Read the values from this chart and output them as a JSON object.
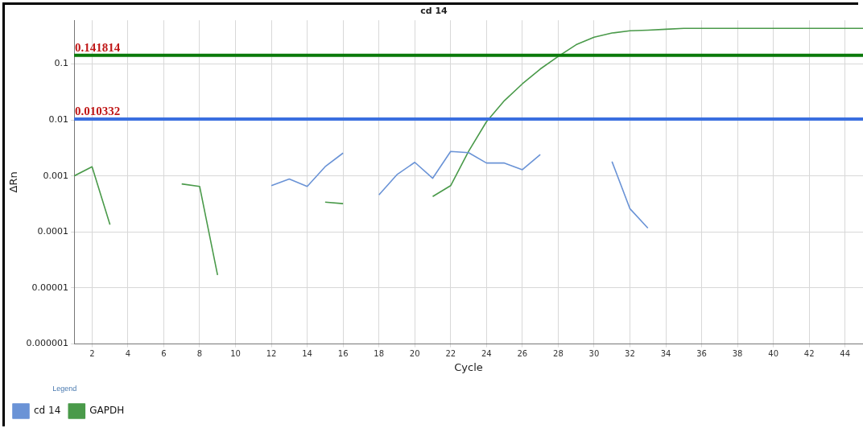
{
  "chart_data": {
    "type": "line",
    "title": "cd 14",
    "xlabel": "Cycle",
    "ylabel": "ΔRn",
    "legend_title": "Legend",
    "x": [
      1,
      2,
      3,
      4,
      5,
      6,
      7,
      8,
      9,
      10,
      11,
      12,
      13,
      14,
      15,
      16,
      17,
      18,
      19,
      20,
      21,
      22,
      23,
      24,
      25,
      26,
      27,
      28,
      29,
      30,
      31,
      32,
      33,
      34,
      35,
      36,
      37,
      38,
      39,
      40,
      41,
      42,
      43,
      44,
      45
    ],
    "series": [
      {
        "name": "cd 14",
        "color": "#6a93d6",
        "values": [
          null,
          null,
          null,
          null,
          null,
          null,
          null,
          null,
          null,
          null,
          null,
          0.00067,
          0.00088,
          0.00065,
          0.00146,
          0.00256,
          null,
          0.00046,
          0.00105,
          0.00175,
          0.00091,
          0.00274,
          0.0026,
          0.0017,
          0.0017,
          0.00129,
          0.0024,
          null,
          null,
          null,
          0.0018,
          0.00026,
          0.000117,
          null,
          null,
          null,
          null,
          null,
          null,
          null,
          null,
          null,
          null,
          null,
          null
        ]
      },
      {
        "name": "GAPDH",
        "color": "#4a9a4a",
        "values": [
          0.001,
          0.00146,
          0.000135,
          null,
          null,
          null,
          0.00072,
          0.00065,
          1.7e-05,
          null,
          null,
          null,
          null,
          null,
          0.00034,
          0.00032,
          null,
          null,
          null,
          null,
          0.00043,
          0.00067,
          0.00274,
          0.0093,
          0.0221,
          0.044,
          0.081,
          0.136,
          0.22,
          0.3,
          0.355,
          0.39,
          0.4,
          0.415,
          0.43,
          0.43,
          0.43,
          0.43,
          0.43,
          0.43,
          0.43,
          0.43,
          0.43,
          0.43,
          0.43
        ]
      }
    ],
    "ref_lines": [
      {
        "axis": "y",
        "value": 0.141814,
        "label": "0.141814",
        "color": "#0a7a0a"
      },
      {
        "axis": "y",
        "value": 0.010332,
        "label": "0.010332",
        "color": "#3a6fe0"
      }
    ],
    "log": "y",
    "xlim": [
      1,
      45
    ],
    "xticks": [
      2,
      4,
      6,
      8,
      10,
      12,
      14,
      16,
      18,
      20,
      22,
      24,
      26,
      28,
      30,
      32,
      34,
      36,
      38,
      40,
      42,
      44
    ],
    "ylim": [
      1e-06,
      0.6
    ],
    "yticks": [
      {
        "value": 1e-06,
        "label": "0.000001"
      },
      {
        "value": 1e-05,
        "label": "0.00001"
      },
      {
        "value": 0.0001,
        "label": "0.0001"
      },
      {
        "value": 0.001,
        "label": "0.001"
      },
      {
        "value": 0.01,
        "label": "0.01"
      },
      {
        "value": 0.1,
        "label": "0.1"
      }
    ],
    "grid": true,
    "legend": "bottom left",
    "marker": "none",
    "line_style": "solid"
  }
}
